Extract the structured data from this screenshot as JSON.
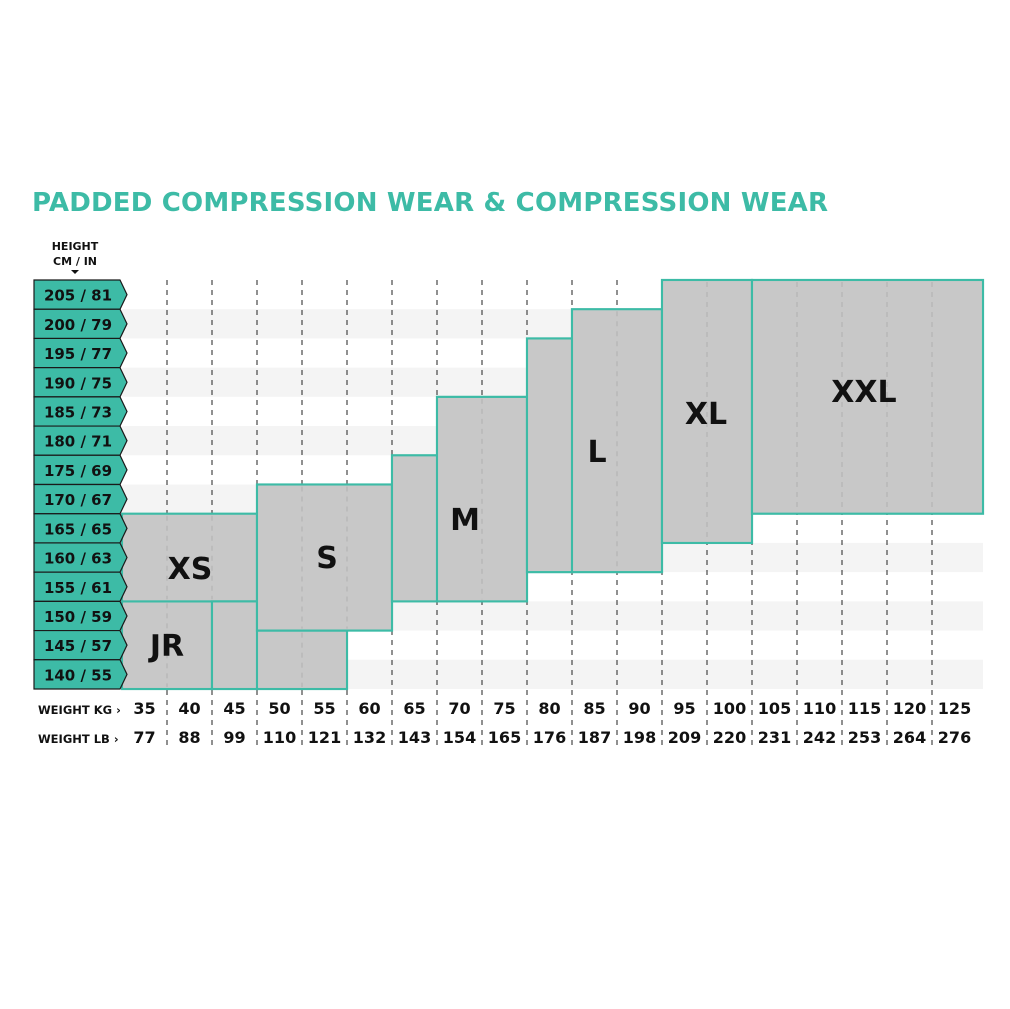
{
  "chart_data": {
    "type": "table",
    "title": "PADDED COMPRESSION WEAR & COMPRESSION WEAR",
    "height_axis_label": [
      "HEIGHT",
      "CM / IN"
    ],
    "heights": [
      {
        "cm": 205,
        "in": 81,
        "label": "205 / 81"
      },
      {
        "cm": 200,
        "in": 79,
        "label": "200 / 79"
      },
      {
        "cm": 195,
        "in": 77,
        "label": "195 / 77"
      },
      {
        "cm": 190,
        "in": 75,
        "label": "190 / 75"
      },
      {
        "cm": 185,
        "in": 73,
        "label": "185 / 73"
      },
      {
        "cm": 180,
        "in": 71,
        "label": "180 / 71"
      },
      {
        "cm": 175,
        "in": 69,
        "label": "175 / 69"
      },
      {
        "cm": 170,
        "in": 67,
        "label": "170 / 67"
      },
      {
        "cm": 165,
        "in": 65,
        "label": "165 / 65"
      },
      {
        "cm": 160,
        "in": 63,
        "label": "160 / 63"
      },
      {
        "cm": 155,
        "in": 61,
        "label": "155 / 61"
      },
      {
        "cm": 150,
        "in": 59,
        "label": "150 / 59"
      },
      {
        "cm": 145,
        "in": 57,
        "label": "145 / 57"
      },
      {
        "cm": 140,
        "in": 55,
        "label": "140 / 55"
      }
    ],
    "weight_kg_label": "WEIGHT KG",
    "weight_lb_label": "WEIGHT LB",
    "weights_kg": [
      "35",
      "40",
      "45",
      "50",
      "55",
      "60",
      "65",
      "70",
      "75",
      "80",
      "85",
      "90",
      "95",
      "100",
      "105",
      "110",
      "115",
      "120",
      "125"
    ],
    "weights_lb": [
      "77",
      "88",
      "99",
      "110",
      "121",
      "132",
      "143",
      "154",
      "165",
      "176",
      "187",
      "198",
      "209",
      "220",
      "231",
      "242",
      "253",
      "264",
      "276"
    ],
    "sizes": [
      {
        "name": "JR",
        "cells": [
          {
            "kg": [
              35,
              40
            ],
            "cm": [
              140,
              150
            ]
          }
        ]
      },
      {
        "name": "XS",
        "cells": [
          {
            "kg": [
              35,
              45
            ],
            "cm": [
              155,
              165
            ]
          },
          {
            "kg": [
              45,
              45
            ],
            "cm": [
              140,
              150
            ]
          },
          {
            "kg": [
              50,
              55
            ],
            "cm": [
              140,
              145
            ]
          }
        ]
      },
      {
        "name": "S",
        "cells": [
          {
            "kg": [
              50,
              60
            ],
            "cm": [
              150,
              170
            ]
          }
        ]
      },
      {
        "name": "M",
        "cells": [
          {
            "kg": [
              65,
              65
            ],
            "cm": [
              155,
              175
            ]
          },
          {
            "kg": [
              70,
              75
            ],
            "cm": [
              155,
              185
            ]
          }
        ]
      },
      {
        "name": "L",
        "cells": [
          {
            "kg": [
              80,
              80
            ],
            "cm": [
              160,
              195
            ]
          },
          {
            "kg": [
              85,
              90
            ],
            "cm": [
              160,
              200
            ]
          }
        ]
      },
      {
        "name": "XL",
        "cells": [
          {
            "kg": [
              95,
              100
            ],
            "cm": [
              165,
              205
            ]
          }
        ]
      },
      {
        "name": "XXL",
        "cells": [
          {
            "kg": [
              105,
              125
            ],
            "cm": [
              170,
              205
            ]
          }
        ]
      }
    ],
    "colors": {
      "accent": "#3dbba6",
      "size_fill": "#c8c8c8",
      "stripe": "#f4f4f4",
      "text": "#111111"
    }
  }
}
